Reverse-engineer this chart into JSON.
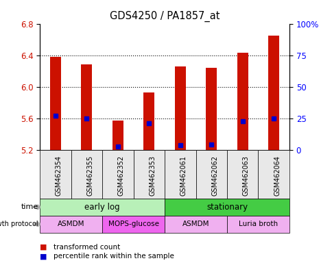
{
  "title": "GDS4250 / PA1857_at",
  "samples": [
    "GSM462354",
    "GSM462355",
    "GSM462352",
    "GSM462353",
    "GSM462061",
    "GSM462062",
    "GSM462063",
    "GSM462064"
  ],
  "bar_values": [
    6.38,
    6.28,
    5.57,
    5.93,
    6.26,
    6.24,
    6.43,
    6.65
  ],
  "percentile_values": [
    5.63,
    5.6,
    5.24,
    5.54,
    5.26,
    5.27,
    5.56,
    5.6
  ],
  "ylim_left": [
    5.2,
    6.8
  ],
  "ylim_right": [
    0,
    100
  ],
  "yticks_left": [
    5.2,
    5.6,
    6.0,
    6.4,
    6.8
  ],
  "yticks_right": [
    0,
    25,
    50,
    75,
    100
  ],
  "ytick_labels_right": [
    "0",
    "25",
    "50",
    "75",
    "100%"
  ],
  "bar_color": "#cc1100",
  "percentile_color": "#0000cc",
  "bar_bottom": 5.2,
  "bar_width": 0.35,
  "time_labels": [
    {
      "label": "early log",
      "start": 0,
      "end": 4,
      "color": "#b8f0b8"
    },
    {
      "label": "stationary",
      "start": 4,
      "end": 8,
      "color": "#44cc44"
    }
  ],
  "protocol_labels": [
    {
      "label": "ASMDM",
      "start": 0,
      "end": 2,
      "color": "#f0b0f0"
    },
    {
      "label": "MOPS-glucose",
      "start": 2,
      "end": 4,
      "color": "#ee66ee"
    },
    {
      "label": "ASMDM",
      "start": 4,
      "end": 6,
      "color": "#f0b0f0"
    },
    {
      "label": "Luria broth",
      "start": 6,
      "end": 8,
      "color": "#f0b0f0"
    }
  ],
  "legend_items": [
    {
      "label": "transformed count",
      "color": "#cc1100"
    },
    {
      "label": "percentile rank within the sample",
      "color": "#0000cc"
    }
  ],
  "grid_yticks": [
    5.6,
    6.0,
    6.4
  ],
  "background_color": "#ffffff"
}
